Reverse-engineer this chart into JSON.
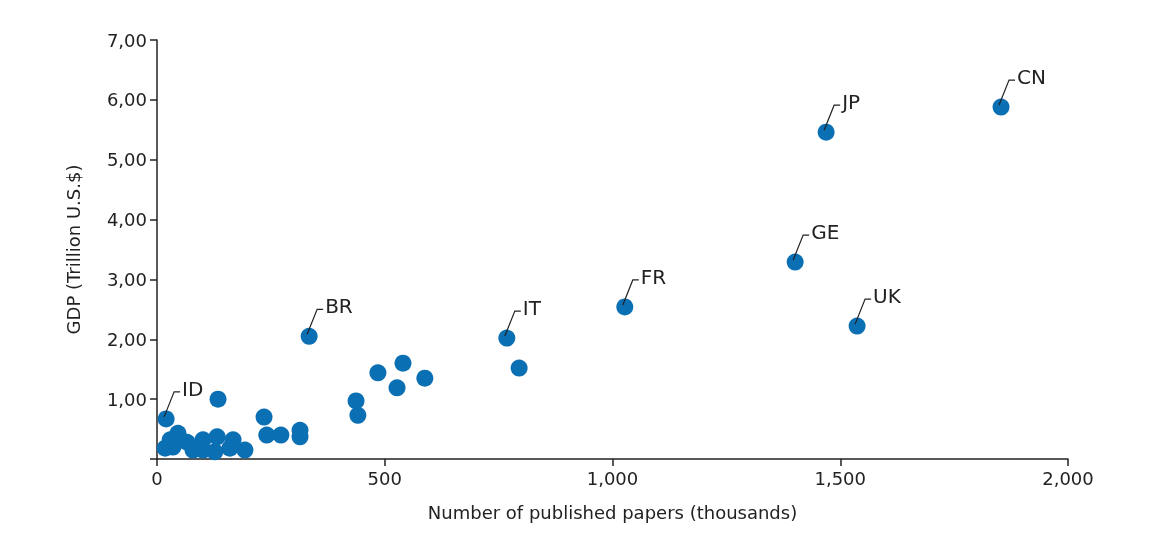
{
  "chart_data": {
    "type": "scatter",
    "xlabel": "Number of published papers (thousands)",
    "ylabel": "GDP (Trillion U.S.$)",
    "x": [
      1853,
      1469,
      1401,
      1537,
      1027,
      768,
      334,
      795,
      485,
      540,
      588,
      527,
      437,
      441,
      20,
      134,
      235,
      241,
      272,
      314,
      314,
      193,
      167,
      160,
      132,
      101,
      127,
      46,
      66,
      18,
      35,
      79,
      101,
      29
    ],
    "values": [
      5.88,
      5.46,
      3.29,
      2.22,
      2.54,
      2.02,
      2.05,
      1.52,
      1.44,
      1.6,
      1.35,
      1.19,
      0.97,
      0.73,
      0.67,
      1.0,
      0.7,
      0.4,
      0.4,
      0.48,
      0.37,
      0.15,
      0.32,
      0.18,
      0.37,
      0.32,
      0.12,
      0.43,
      0.28,
      0.18,
      0.2,
      0.15,
      0.15,
      0.32
    ],
    "color": "#0b6fb3",
    "marker": "circle",
    "grid": false,
    "xlim": [
      0,
      2000
    ],
    "xticks": [
      0,
      500,
      {
        "value": 1000,
        "label": "1,000"
      },
      {
        "value": 1500,
        "label": "1,500"
      },
      {
        "value": 2000,
        "label": "2,000"
      }
    ],
    "ylim": [
      0,
      7
    ],
    "yticks": [
      {
        "value": 0,
        "label": null
      },
      {
        "value": 1,
        "label": "1,00"
      },
      {
        "value": 2,
        "label": "2,00"
      },
      {
        "value": 3,
        "label": "3,00"
      },
      {
        "value": 4,
        "label": "4,00"
      },
      {
        "value": 5,
        "label": "5,00"
      },
      {
        "value": 6,
        "label": "6,00"
      },
      {
        "value": 7,
        "label": "7,00"
      }
    ],
    "annotations": [
      {
        "text": "CN",
        "x": 1853,
        "y": 5.88
      },
      {
        "text": "JP",
        "x": 1469,
        "y": 5.46
      },
      {
        "text": "GE",
        "x": 1401,
        "y": 3.29
      },
      {
        "text": "UK",
        "x": 1537,
        "y": 2.22
      },
      {
        "text": "FR",
        "x": 1027,
        "y": 2.54
      },
      {
        "text": "IT",
        "x": 768,
        "y": 2.02
      },
      {
        "text": "BR",
        "x": 334,
        "y": 2.05
      },
      {
        "text": "ID",
        "x": 20,
        "y": 0.67
      }
    ]
  }
}
